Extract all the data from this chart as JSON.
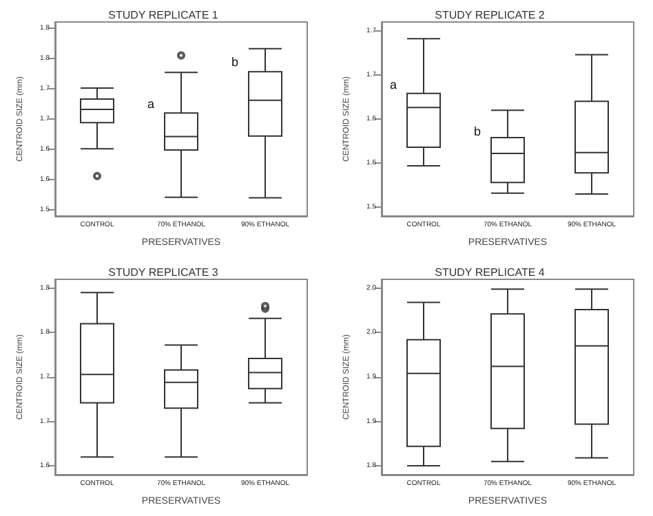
{
  "chart_data": [
    {
      "type": "box",
      "title": "STUDY REPLICATE 1",
      "xlabel": "PRESERVATIVES",
      "ylabel": "CENTROID SIZE (mm)",
      "categories": [
        "CONTROL",
        "70% ETHANOL",
        "90% ETHANOL"
      ],
      "color": "#333333",
      "boxes": [
        {
          "low": 1.651,
          "q1": 1.694,
          "median": 1.716,
          "q3": 1.733,
          "high": 1.751,
          "outliers": [
            1.606
          ]
        },
        {
          "low": 1.571,
          "q1": 1.649,
          "median": 1.671,
          "q3": 1.71,
          "high": 1.777,
          "outliers": [
            1.805
          ]
        },
        {
          "low": 1.57,
          "q1": 1.672,
          "median": 1.731,
          "q3": 1.778,
          "high": 1.816
        }
      ],
      "ylim": [
        1.54,
        1.86
      ],
      "yticks": [
        {
          "value": 1.55,
          "label": "1.5"
        },
        {
          "value": 1.6,
          "label": "1.6"
        },
        {
          "value": 1.65,
          "label": "1.6"
        },
        {
          "value": 1.7,
          "label": "1.7"
        },
        {
          "value": 1.75,
          "label": "1.7"
        },
        {
          "value": 1.8,
          "label": "1.8"
        },
        {
          "value": 1.85,
          "label": "1.8"
        }
      ],
      "annotations": [
        {
          "text": "a",
          "x": "70% ETHANOL",
          "y": 1.725
        },
        {
          "text": "b",
          "x": "90% ETHANOL",
          "y": 1.794
        }
      ],
      "grid": false
    },
    {
      "type": "box",
      "title": "STUDY REPLICATE 2",
      "xlabel": "PRESERVATIVES",
      "ylabel": "CENTROID SIZE (mm)",
      "categories": [
        "CONTROL",
        "70% ETHANOL",
        "90% ETHANOL"
      ],
      "color": "#333333",
      "boxes": [
        {
          "low": 1.597,
          "q1": 1.618,
          "median": 1.663,
          "q3": 1.679,
          "high": 1.741
        },
        {
          "low": 1.566,
          "q1": 1.578,
          "median": 1.611,
          "q3": 1.629,
          "high": 1.66
        },
        {
          "low": 1.565,
          "q1": 1.589,
          "median": 1.612,
          "q3": 1.67,
          "high": 1.723
        }
      ],
      "ylim": [
        1.54,
        1.76
      ],
      "yticks": [
        {
          "value": 1.55,
          "label": "1.5"
        },
        {
          "value": 1.6,
          "label": "1.6"
        },
        {
          "value": 1.65,
          "label": "1.6"
        },
        {
          "value": 1.7,
          "label": "1.7"
        },
        {
          "value": 1.75,
          "label": "1.7"
        }
      ],
      "annotations": [
        {
          "text": "a",
          "x": "CONTROL",
          "y": 1.689
        },
        {
          "text": "b",
          "x": "70% ETHANOL",
          "y": 1.636
        }
      ],
      "grid": false
    },
    {
      "type": "box",
      "title": "STUDY REPLICATE 3",
      "xlabel": "PRESERVATIVES",
      "ylabel": "CENTROID SIZE (mm)",
      "categories": [
        "CONTROL",
        "70% ETHANOL",
        "90% ETHANOL"
      ],
      "color": "#333333",
      "boxes": [
        {
          "low": 1.61,
          "q1": 1.671,
          "median": 1.703,
          "q3": 1.76,
          "high": 1.795
        },
        {
          "low": 1.61,
          "q1": 1.665,
          "median": 1.694,
          "q3": 1.708,
          "high": 1.736
        },
        {
          "low": 1.671,
          "q1": 1.687,
          "median": 1.705,
          "q3": 1.721,
          "high": 1.766,
          "outliers": [
            1.777,
            1.78
          ]
        }
      ],
      "ylim": [
        1.59,
        1.81
      ],
      "yticks": [
        {
          "value": 1.6,
          "label": "1.6"
        },
        {
          "value": 1.65,
          "label": "1.7"
        },
        {
          "value": 1.7,
          "label": "1.7"
        },
        {
          "value": 1.75,
          "label": "1.8"
        },
        {
          "value": 1.8,
          "label": "1.8"
        }
      ],
      "grid": false
    },
    {
      "type": "box",
      "title": "STUDY REPLICATE 4",
      "xlabel": "PRESERVATIVES",
      "ylabel": "CENTROID SIZE (mm)",
      "categories": [
        "CONTROL",
        "70% ETHANOL",
        "90% ETHANOL"
      ],
      "color": "#333333",
      "boxes": [
        {
          "low": 1.8,
          "q1": 1.822,
          "median": 1.904,
          "q3": 1.942,
          "high": 1.984
        },
        {
          "low": 1.805,
          "q1": 1.842,
          "median": 1.912,
          "q3": 1.971,
          "high": 1.999
        },
        {
          "low": 1.809,
          "q1": 1.847,
          "median": 1.935,
          "q3": 1.976,
          "high": 1.999
        }
      ],
      "ylim": [
        1.79,
        2.01
      ],
      "yticks": [
        {
          "value": 1.8,
          "label": "1.8"
        },
        {
          "value": 1.85,
          "label": "1.9"
        },
        {
          "value": 1.9,
          "label": "1.9"
        },
        {
          "value": 1.95,
          "label": "2.0"
        },
        {
          "value": 2.0,
          "label": "2.0"
        }
      ],
      "grid": false
    }
  ]
}
